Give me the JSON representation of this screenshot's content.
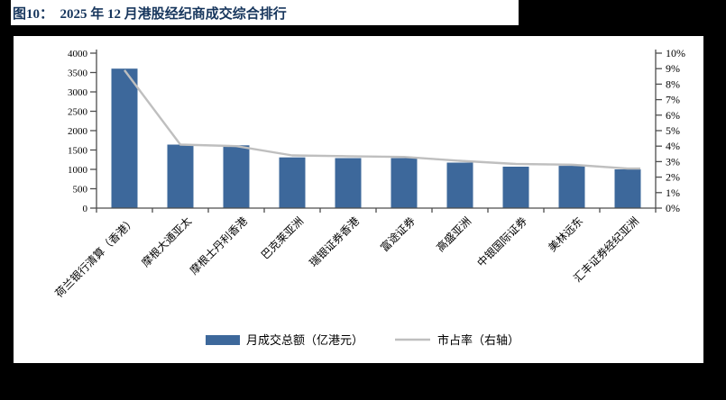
{
  "figure": {
    "title": "图10：　2025 年 12 月港股经纪商成交综合排行"
  },
  "chart_data": {
    "type": "bar",
    "subtype": "combo-bar-line-dual-axis",
    "categories": [
      "荷兰银行清算（香港）",
      "摩根大通亚太",
      "摩根士丹利香港",
      "巴克莱亚洲",
      "瑞银证券香港",
      "富途证券",
      "高盛亚洲",
      "中银国际证券",
      "美林远东",
      "汇丰证券经纪亚洲"
    ],
    "series": [
      {
        "name": "月成交总额（亿港元）",
        "type": "bar",
        "axis": "left",
        "values": [
          3600,
          1640,
          1620,
          1310,
          1290,
          1290,
          1175,
          1070,
          1090,
          1000
        ]
      },
      {
        "name": "市占率（右轴）",
        "type": "line",
        "axis": "right",
        "values": [
          8.9,
          4.1,
          4.0,
          3.4,
          3.35,
          3.3,
          3.05,
          2.85,
          2.8,
          2.55
        ]
      }
    ],
    "left_axis": {
      "min": 0,
      "max": 4000,
      "step": 500,
      "tick_labels": [
        "0",
        "500",
        "1000",
        "1500",
        "2000",
        "2500",
        "3000",
        "3500",
        "4000"
      ]
    },
    "right_axis": {
      "min": 0,
      "max": 10,
      "step": 1,
      "tick_labels": [
        "0%",
        "1%",
        "2%",
        "3%",
        "4%",
        "5%",
        "6%",
        "7%",
        "8%",
        "9%",
        "10%"
      ]
    },
    "legend": [
      "月成交总额（亿港元）",
      "市占率（右轴）"
    ],
    "legend_position": "bottom",
    "grid": false,
    "colors": {
      "bar": "#3D689B",
      "line": "#BFBFBF",
      "title": "#17365D",
      "axis": "#4d4d4d",
      "text": "#000000"
    }
  }
}
